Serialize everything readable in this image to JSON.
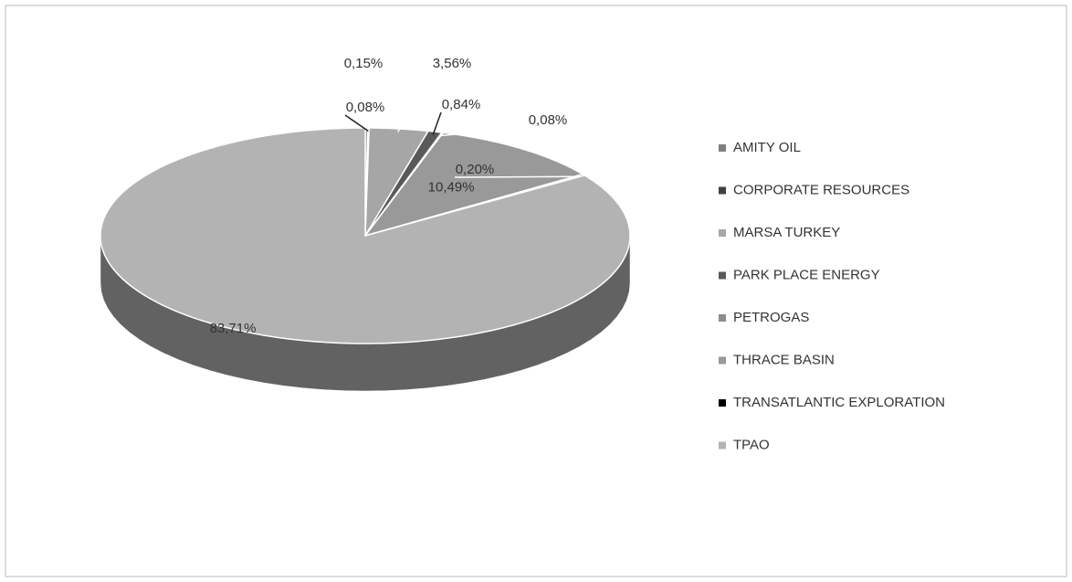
{
  "chart_data": {
    "type": "pie",
    "categories": [
      "AMITY OIL",
      "CORPORATE RESOURCES",
      "MARSA TURKEY",
      "PARK PLACE ENERGY",
      "PETROGAS",
      "THRACE BASIN",
      "TRANSATLANTIC EXPLORATION",
      "TPAO"
    ],
    "values": [
      0.15,
      0.08,
      3.56,
      0.84,
      0.08,
      10.49,
      0.2,
      83.71
    ],
    "value_labels": [
      "0,15%",
      "0,08%",
      "3,56%",
      "0,84%",
      "0,08%",
      "10,49%",
      "0,20%",
      "83,71%"
    ],
    "colors": [
      "#7f7f7f",
      "#404040",
      "#a6a6a6",
      "#595959",
      "#8c8c8c",
      "#999999",
      "#000000",
      "#b3b3b3"
    ],
    "legend": "right"
  }
}
